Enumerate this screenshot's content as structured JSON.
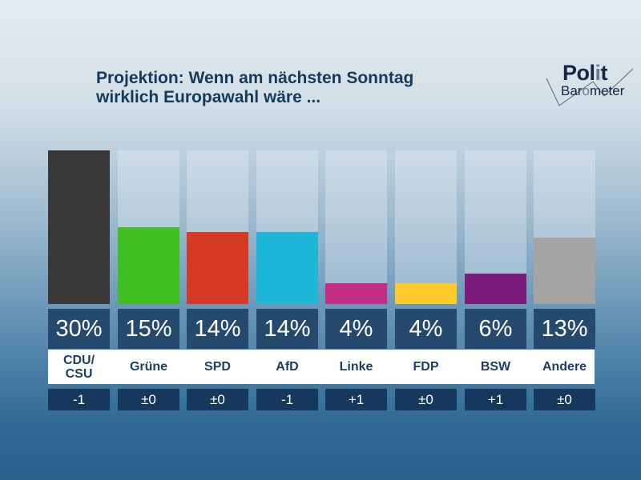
{
  "chart_data": {
    "type": "bar",
    "title": "Projektion: Wenn am nächsten Sonntag wirklich Europawahl wäre ...",
    "categories": [
      "CDU/ CSU",
      "Grüne",
      "SPD",
      "AfD",
      "Linke",
      "FDP",
      "BSW",
      "Andere"
    ],
    "values": [
      30,
      15,
      14,
      14,
      4,
      4,
      6,
      13
    ],
    "value_labels": [
      "30%",
      "15%",
      "14%",
      "14%",
      "4%",
      "4%",
      "6%",
      "13%"
    ],
    "changes": [
      "-1",
      "±0",
      "±0",
      "-1",
      "+1",
      "±0",
      "+1",
      "±0"
    ],
    "colors": [
      "#383838",
      "#3fbf22",
      "#d63a25",
      "#1fb7d8",
      "#c42e82",
      "#fccc2c",
      "#7a1c7c",
      "#a4a4a4"
    ],
    "ylim": [
      0,
      30
    ],
    "grid": false
  },
  "logo": {
    "line1": "Polit",
    "line2": "Barometer"
  }
}
